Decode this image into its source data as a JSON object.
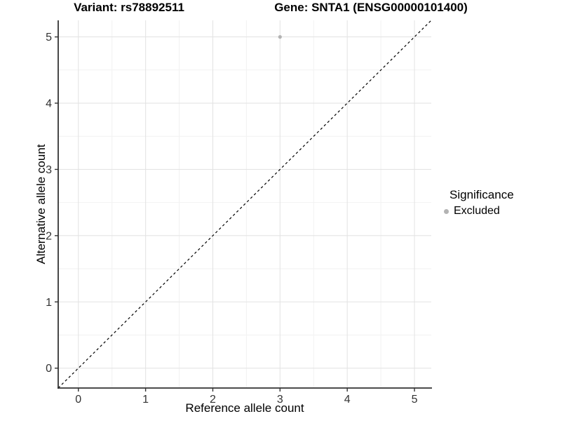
{
  "window": {
    "background": "#ffffff"
  },
  "chart_data": {
    "type": "scatter",
    "titles": [
      "Variant: rs78892511",
      "Gene: SNTA1 (ENSG00000101400)"
    ],
    "xlabel": "Reference allele count",
    "ylabel": "Alternative allele count",
    "xlim": [
      -0.3,
      5.25
    ],
    "ylim": [
      -0.3,
      5.25
    ],
    "xticks": [
      0,
      1,
      2,
      3,
      4,
      5
    ],
    "yticks": [
      0,
      1,
      2,
      3,
      4,
      5
    ],
    "minor_xticks": [
      0.5,
      1.5,
      2.5,
      3.5,
      4.5
    ],
    "minor_yticks": [
      0.5,
      1.5,
      2.5,
      3.5,
      4.5
    ],
    "grid": true,
    "reference_line": {
      "slope": 1,
      "intercept": 0,
      "style": "dashed",
      "color": "#000000"
    },
    "series": [
      {
        "name": "Excluded",
        "color": "#b3b3b3",
        "marker": "circle",
        "points": [
          {
            "x": 3,
            "y": 5
          }
        ]
      }
    ],
    "legend": {
      "title": "Significance",
      "position": "right",
      "items": [
        {
          "label": "Excluded",
          "color": "#b3b3b3",
          "marker": "circle"
        }
      ]
    },
    "colors": {
      "grid_major": "#e4e4e4",
      "grid_minor": "#f2f2f2",
      "axis_line": "#333333",
      "tick_text": "#333333"
    }
  }
}
